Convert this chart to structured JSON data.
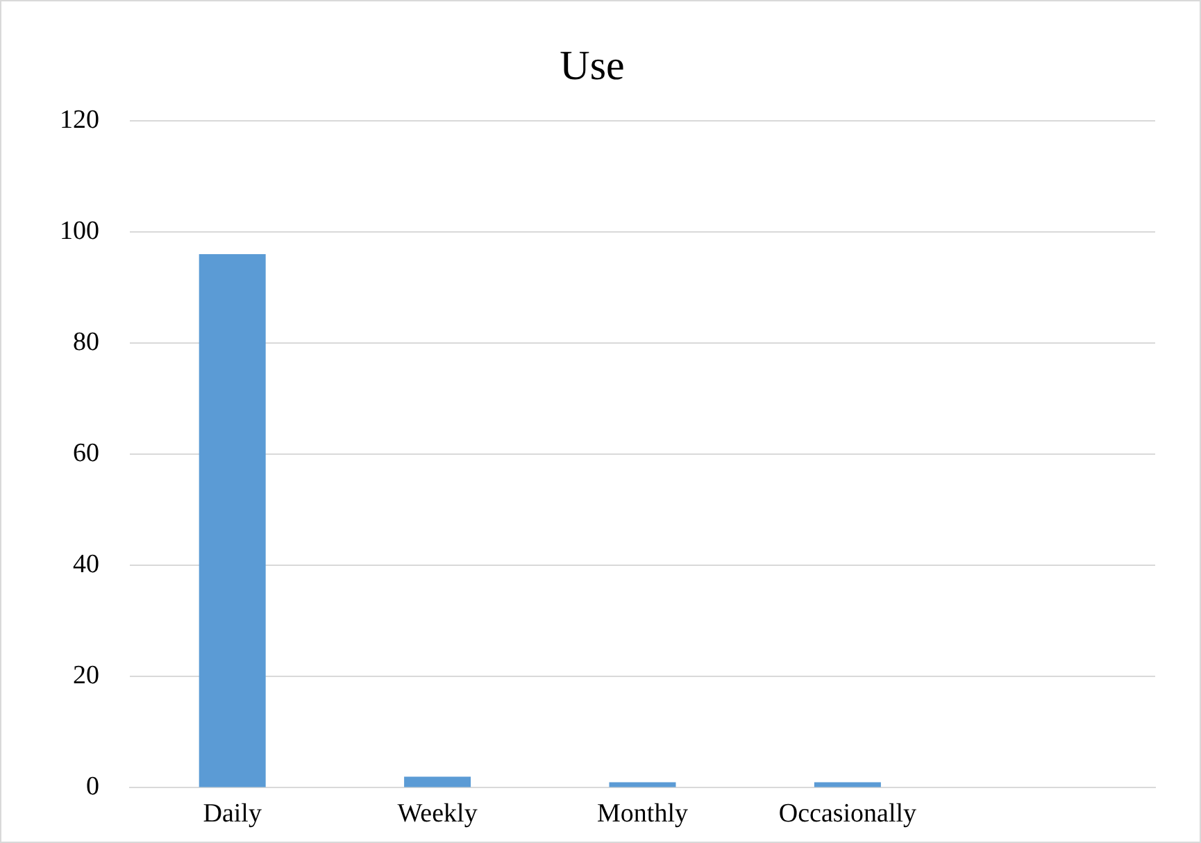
{
  "chart_data": {
    "type": "bar",
    "title": "Use",
    "categories": [
      "Daily",
      "Weekly",
      "Monthly",
      "Occasionally",
      null
    ],
    "values": [
      96,
      2,
      1,
      1,
      null
    ],
    "color": "#5b9bd5",
    "ylim": [
      0,
      120
    ],
    "yticks": [
      0,
      20,
      40,
      60,
      80,
      100,
      120
    ],
    "grid": "y",
    "legend": false
  }
}
